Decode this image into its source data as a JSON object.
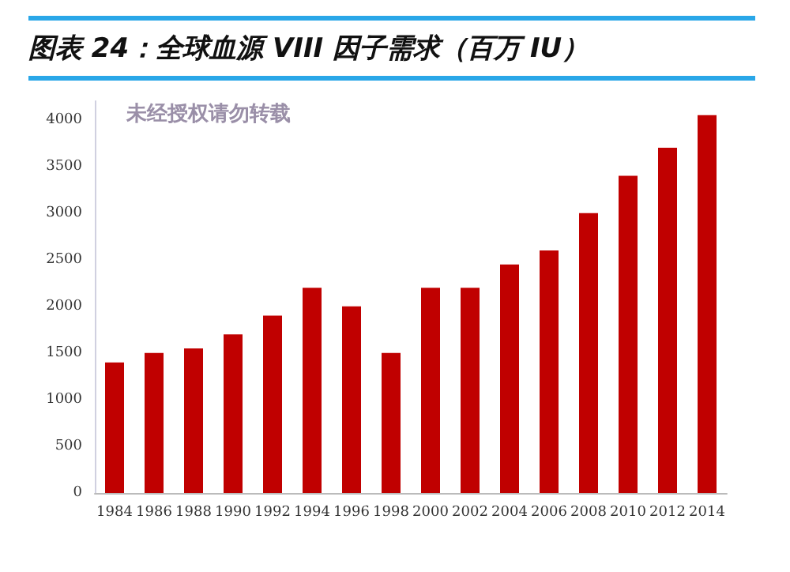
{
  "chart_data": {
    "type": "bar",
    "title": "图表 24：全球血源 VIII 因子需求（百万 IU）",
    "categories": [
      "1984",
      "1986",
      "1988",
      "1990",
      "1992",
      "1994",
      "1996",
      "1998",
      "2000",
      "2002",
      "2004",
      "2006",
      "2008",
      "2010",
      "2012",
      "2014"
    ],
    "values": [
      1400,
      1500,
      1550,
      1700,
      1900,
      2200,
      2000,
      1500,
      2200,
      2200,
      2450,
      2600,
      3000,
      3400,
      3700,
      4050
    ],
    "color": "#c00000",
    "ylim": [
      0,
      4200
    ],
    "yticks": [
      0,
      500,
      1000,
      1500,
      2000,
      2500,
      3000,
      3500,
      4000
    ],
    "annotations": [
      "未经授权请勿转载"
    ],
    "grid": false
  }
}
